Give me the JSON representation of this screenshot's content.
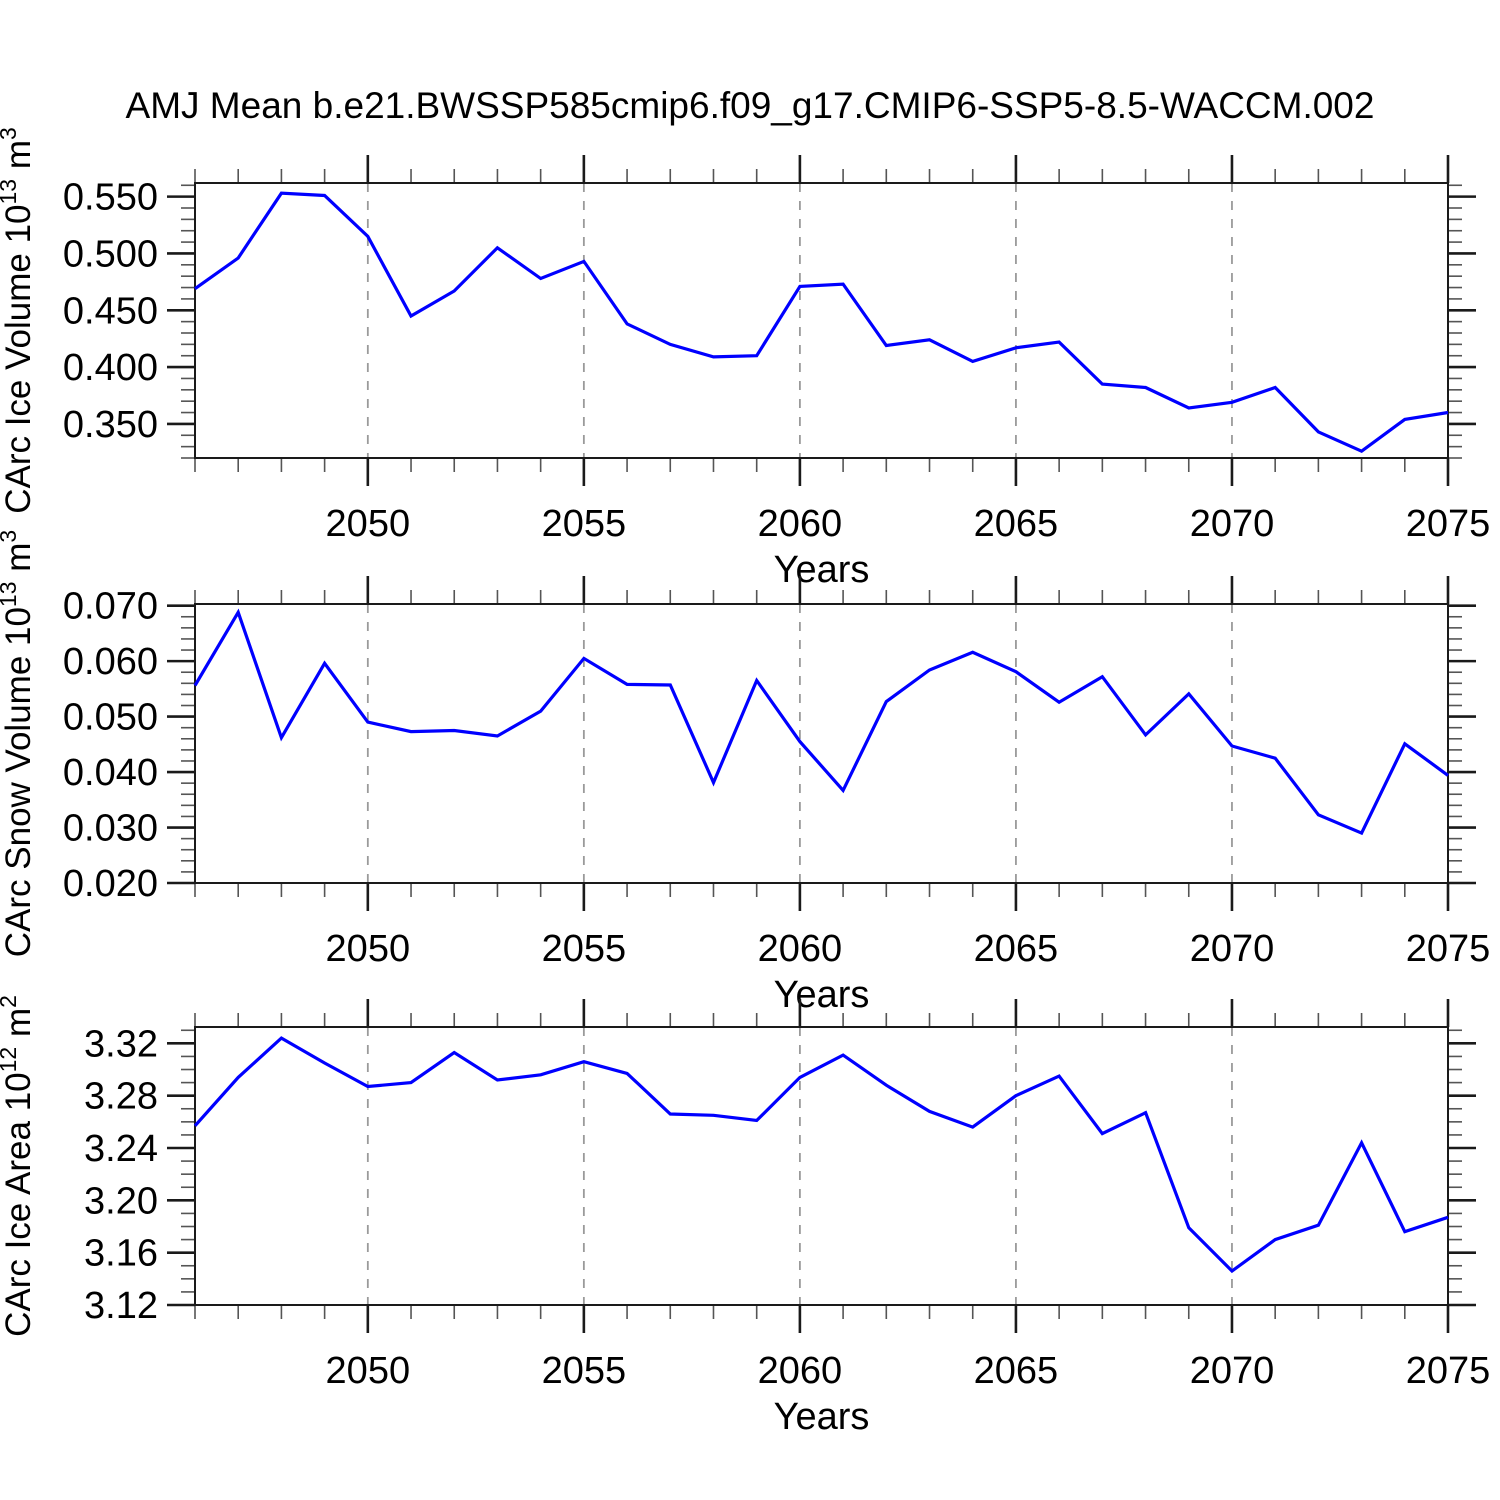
{
  "title": "AMJ Mean b.e21.BWSSP585cmip6.f09_g17.CMIP6-SSP5-8.5-WACCM.002",
  "colors": {
    "line": "#0000ff",
    "grid": "#9a9a9a",
    "axis": "#1a1a1a",
    "minor_tick": "#555555",
    "background": "#ffffff"
  },
  "x_axis": {
    "label": "Years",
    "min": 2046,
    "max": 2075,
    "major_ticks": [
      2050,
      2055,
      2060,
      2065,
      2070,
      2075
    ],
    "major_tick_labels": [
      "2050",
      "2055",
      "2060",
      "2065",
      "2070",
      "2075"
    ],
    "minor_tick_step": 1,
    "gridline_years": [
      2050,
      2055,
      2060,
      2065,
      2070
    ]
  },
  "years": [
    2046,
    2047,
    2048,
    2049,
    2050,
    2051,
    2052,
    2053,
    2054,
    2055,
    2056,
    2057,
    2058,
    2059,
    2060,
    2061,
    2062,
    2063,
    2064,
    2065,
    2066,
    2067,
    2068,
    2069,
    2070,
    2071,
    2072,
    2073,
    2074,
    2075
  ],
  "chart_data": [
    {
      "type": "line",
      "name": "carc-ice-volume",
      "ylabel": "CArc Ice Volume 10^13 m^3",
      "ylabel_rich": [
        [
          "CArc Ice Volume 10",
          false
        ],
        [
          "13",
          true
        ],
        [
          " m",
          false
        ],
        [
          "3",
          true
        ]
      ],
      "xlabel": "Years",
      "ylim": [
        0.32,
        0.562
      ],
      "ytick_major": [
        0.35,
        0.4,
        0.45,
        0.5,
        0.55
      ],
      "ytick_labels": [
        "0.350",
        "0.400",
        "0.450",
        "0.500",
        "0.550"
      ],
      "ytick_minor_step": 0.01,
      "values": [
        0.469,
        0.496,
        0.553,
        0.551,
        0.515,
        0.445,
        0.467,
        0.505,
        0.478,
        0.493,
        0.438,
        0.42,
        0.409,
        0.41,
        0.471,
        0.473,
        0.419,
        0.424,
        0.405,
        0.417,
        0.422,
        0.385,
        0.382,
        0.364,
        0.369,
        0.382,
        0.343,
        0.326,
        0.354,
        0.36
      ]
    },
    {
      "type": "line",
      "name": "carc-snow-volume",
      "ylabel": "CArc Snow Volume 10^13 m^3",
      "ylabel_rich": [
        [
          "CArc Snow Volume 10",
          false
        ],
        [
          "13",
          true
        ],
        [
          " m",
          false
        ],
        [
          "3",
          true
        ]
      ],
      "xlabel": "Years",
      "ylim": [
        0.02,
        0.0703
      ],
      "ytick_major": [
        0.02,
        0.03,
        0.04,
        0.05,
        0.06,
        0.07
      ],
      "ytick_labels": [
        "0.020",
        "0.030",
        "0.040",
        "0.050",
        "0.060",
        "0.070"
      ],
      "ytick_minor_step": 0.002,
      "values": [
        0.0556,
        0.0688,
        0.0462,
        0.0596,
        0.049,
        0.0473,
        0.0475,
        0.0465,
        0.051,
        0.0605,
        0.0558,
        0.0557,
        0.0381,
        0.0565,
        0.0455,
        0.0367,
        0.0527,
        0.0584,
        0.0616,
        0.0581,
        0.0526,
        0.0572,
        0.0467,
        0.0541,
        0.0447,
        0.0425,
        0.0323,
        0.029,
        0.0451,
        0.0394
      ]
    },
    {
      "type": "line",
      "name": "carc-ice-area",
      "ylabel": "CArc Ice Area 10^12 m^2",
      "ylabel_rich": [
        [
          "CArc Ice Area 10",
          false
        ],
        [
          "12",
          true
        ],
        [
          " m",
          false
        ],
        [
          "2",
          true
        ]
      ],
      "xlabel": "Years",
      "ylim": [
        3.12,
        3.3325
      ],
      "ytick_major": [
        3.12,
        3.16,
        3.2,
        3.24,
        3.28,
        3.32
      ],
      "ytick_labels": [
        "3.12",
        "3.16",
        "3.20",
        "3.24",
        "3.28",
        "3.32"
      ],
      "ytick_minor_step": 0.01,
      "values": [
        3.257,
        3.294,
        3.324,
        3.305,
        3.287,
        3.29,
        3.313,
        3.292,
        3.296,
        3.306,
        3.297,
        3.266,
        3.265,
        3.261,
        3.294,
        3.311,
        3.288,
        3.268,
        3.256,
        3.28,
        3.295,
        3.251,
        3.267,
        3.179,
        3.146,
        3.17,
        3.181,
        3.244,
        3.176,
        3.187
      ]
    }
  ]
}
